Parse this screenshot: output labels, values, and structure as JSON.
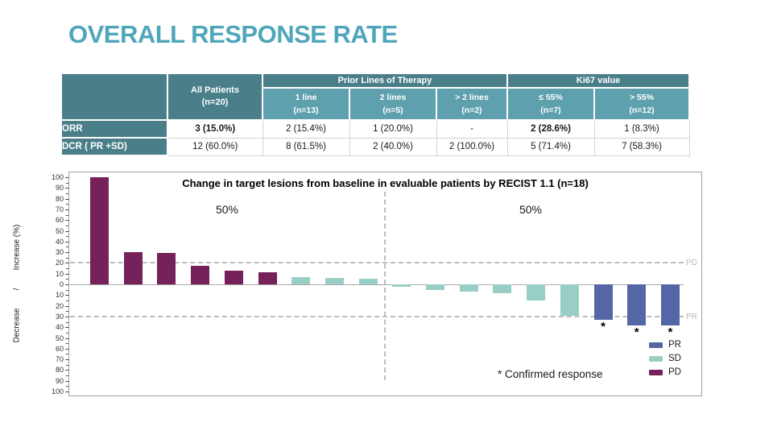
{
  "slide": {
    "title": "OVERALL RESPONSE RATE",
    "accent_color": "#4FA6BA"
  },
  "table": {
    "colors": {
      "header_dark": "#4A7F8A",
      "header_light": "#5FA0AE"
    },
    "group_headers": {
      "prior_lines": "Prior Lines of Therapy",
      "ki67": "Ki67 value"
    },
    "all_patients": {
      "line1": "All Patients",
      "line2": "(n=20)"
    },
    "subheaders": [
      {
        "line1": "1 line",
        "line2": "(n=13)"
      },
      {
        "line1": "2 lines",
        "line2": "(n=5)"
      },
      {
        "line1": "> 2 lines",
        "line2": "(n=2)"
      },
      {
        "line1": "≤ 55%",
        "line2": "(n=7)"
      },
      {
        "line1": "> 55%",
        "line2": "(n=12)"
      }
    ],
    "rows": [
      {
        "label": "ORR",
        "cells": [
          "3 (15.0%)",
          "2 (15.4%)",
          "1 (20.0%)",
          "-",
          "2 (28.6%)",
          "1 (8.3%)"
        ]
      },
      {
        "label": "DCR ( PR +SD)",
        "cells": [
          "12 (60.0%)",
          "8 (61.5%)",
          "2 (40.0%)",
          "2 (100.0%)",
          "5 (71.4%)",
          "7 (58.3%)"
        ]
      }
    ]
  },
  "chart_data": {
    "type": "bar",
    "title": "Change in target lesions from baseline in evaluable patients by RECIST 1.1 (n=18)",
    "ylabel": "Decrease        /        Increase (%)",
    "ylim": [
      -100,
      100
    ],
    "ytick_step": 10,
    "legend_position": "lower right",
    "thresholds": [
      {
        "value": 20,
        "label": "PD"
      },
      {
        "value": -30,
        "label": "PR"
      }
    ],
    "divider": {
      "labels": [
        "50%",
        "50%"
      ],
      "after_bar_index": 9
    },
    "annotation": "* Confirmed response",
    "legend": [
      {
        "name": "PR",
        "color": "#5566A7"
      },
      {
        "name": "SD",
        "color": "#99CEC7"
      },
      {
        "name": "PD",
        "color": "#76215A"
      }
    ],
    "bars": [
      {
        "value": 100,
        "group": "PD",
        "confirmed": false
      },
      {
        "value": 30,
        "group": "PD",
        "confirmed": false
      },
      {
        "value": 29,
        "group": "PD",
        "confirmed": false
      },
      {
        "value": 17,
        "group": "PD",
        "confirmed": false
      },
      {
        "value": 13,
        "group": "PD",
        "confirmed": false
      },
      {
        "value": 11,
        "group": "PD",
        "confirmed": false
      },
      {
        "value": 7,
        "group": "SD",
        "confirmed": false
      },
      {
        "value": 6,
        "group": "SD",
        "confirmed": false
      },
      {
        "value": 5,
        "group": "SD",
        "confirmed": false
      },
      {
        "value": -2,
        "group": "SD",
        "confirmed": false
      },
      {
        "value": -5,
        "group": "SD",
        "confirmed": false
      },
      {
        "value": -7,
        "group": "SD",
        "confirmed": false
      },
      {
        "value": -8,
        "group": "SD",
        "confirmed": false
      },
      {
        "value": -15,
        "group": "SD",
        "confirmed": false
      },
      {
        "value": -29,
        "group": "SD",
        "confirmed": false
      },
      {
        "value": -33,
        "group": "PR",
        "confirmed": true
      },
      {
        "value": -38,
        "group": "PR",
        "confirmed": true
      },
      {
        "value": -38,
        "group": "PR",
        "confirmed": true
      }
    ]
  }
}
